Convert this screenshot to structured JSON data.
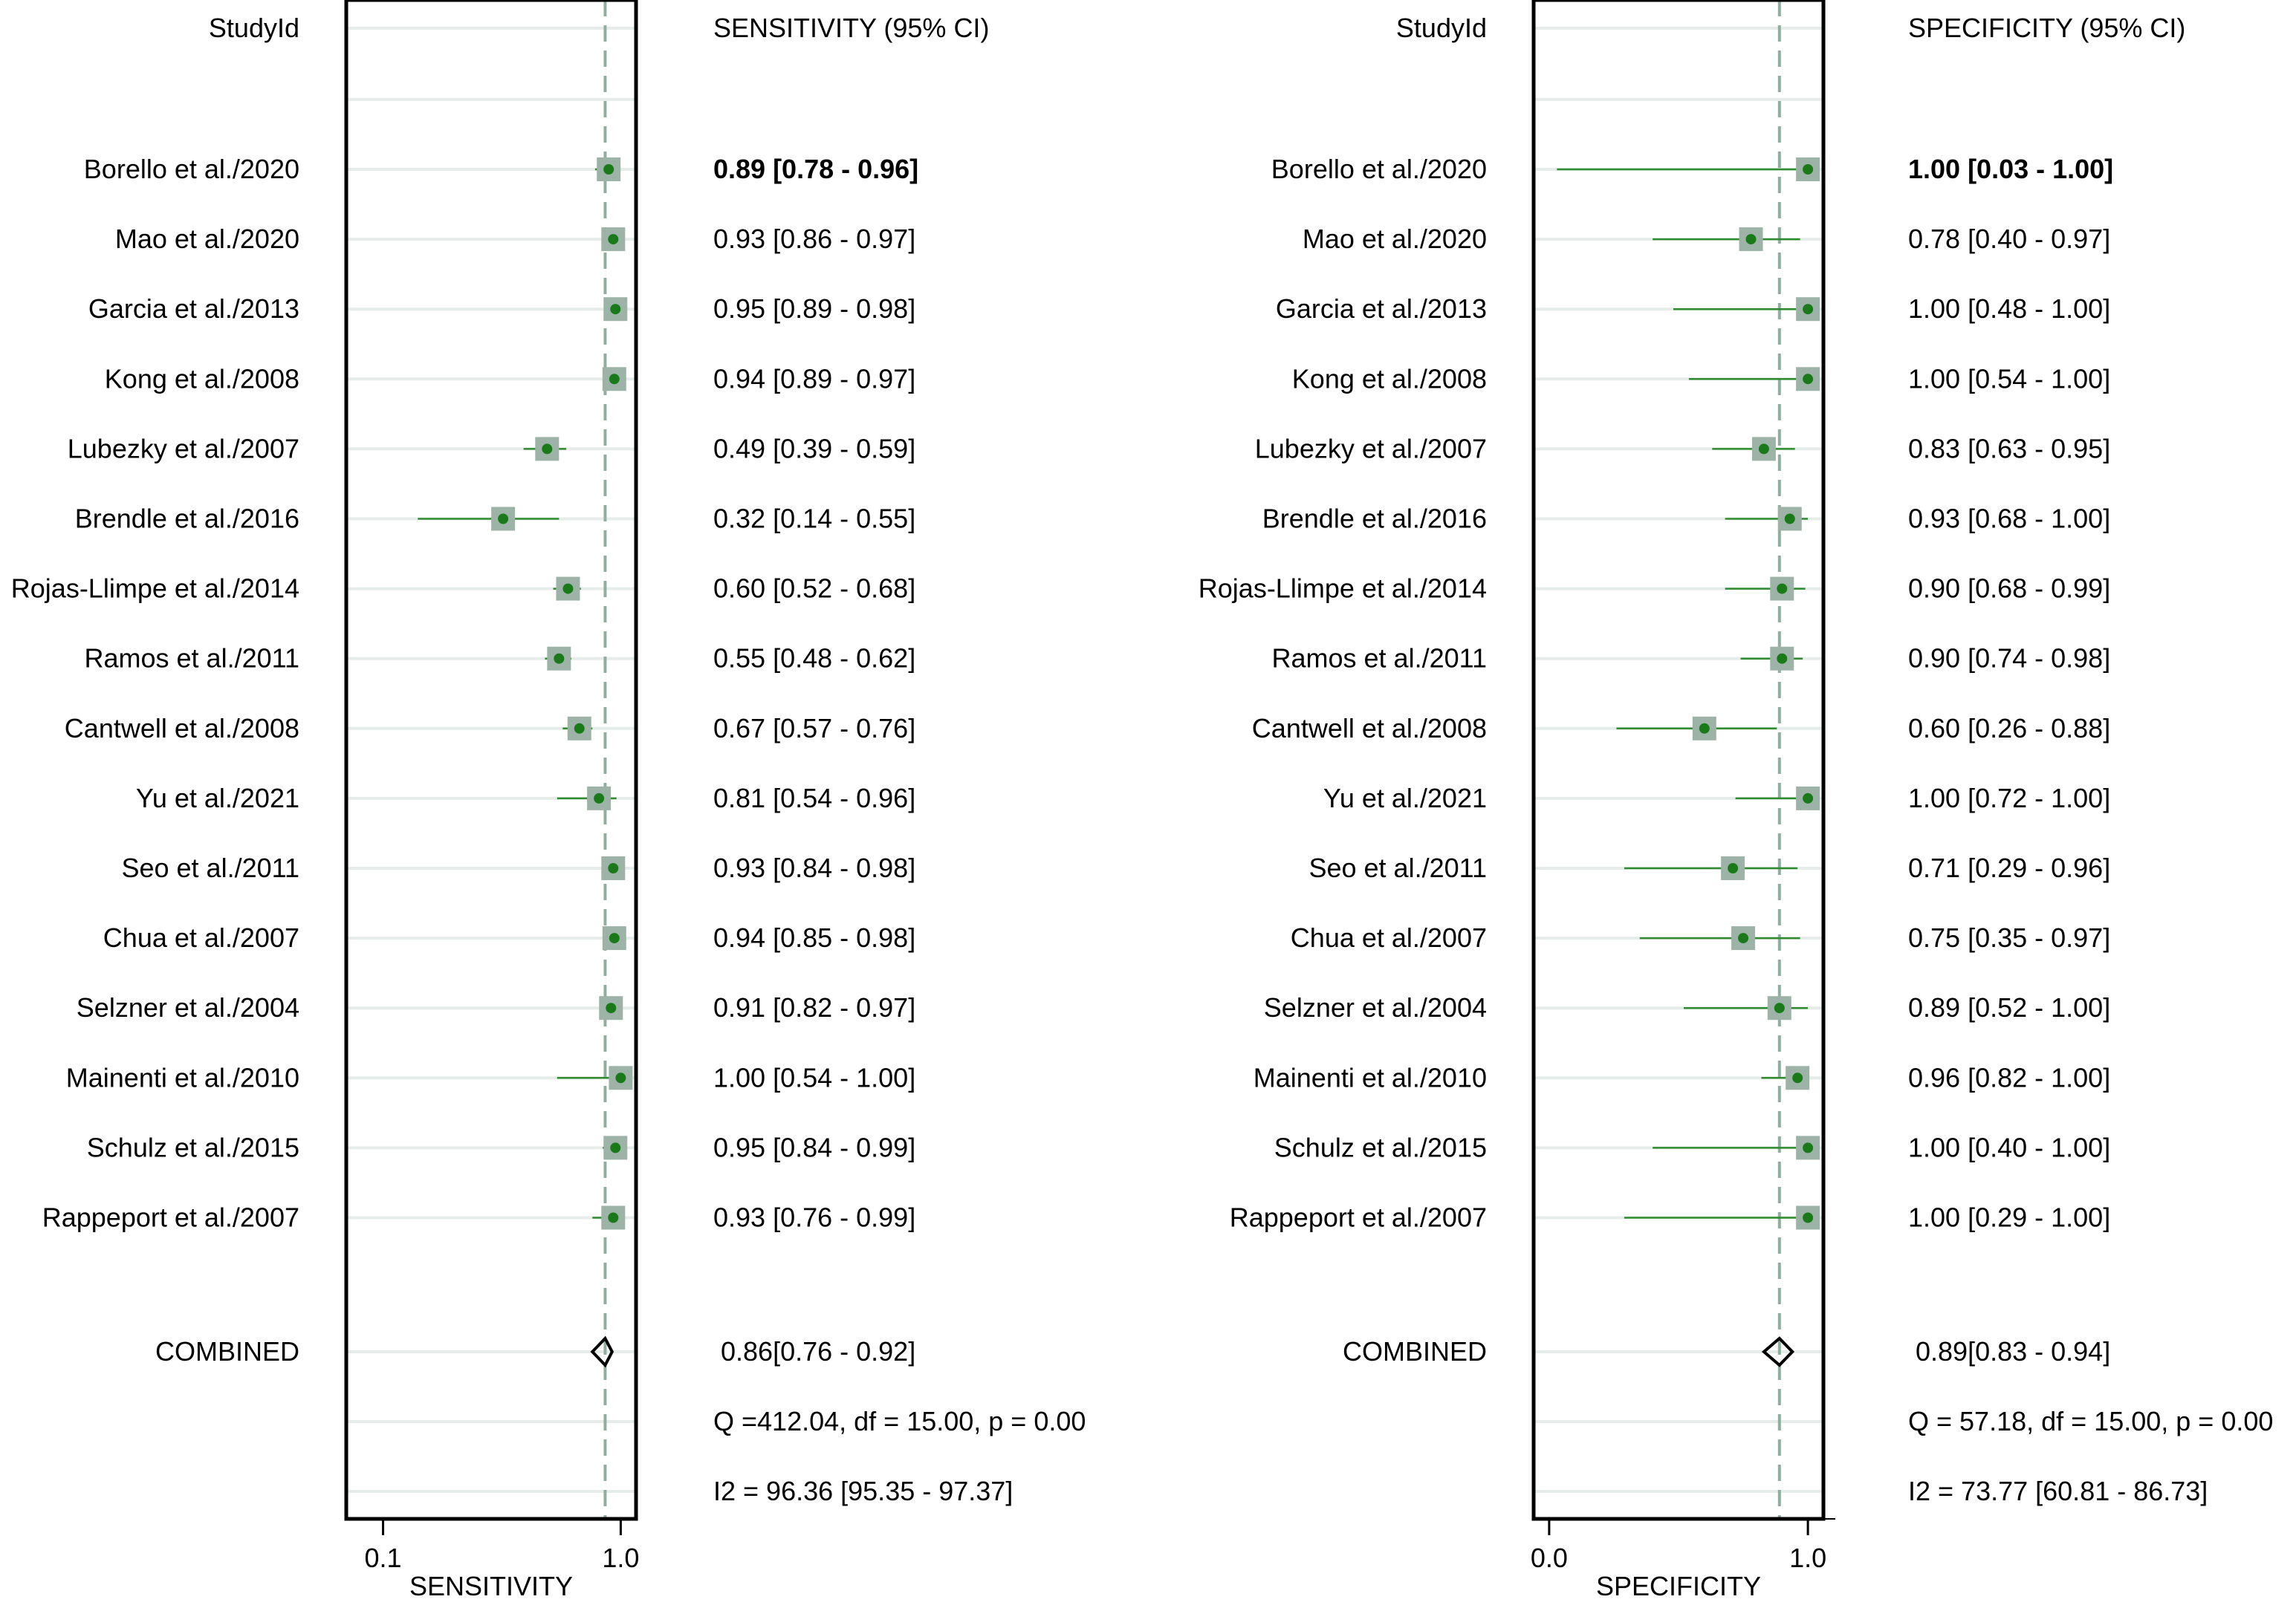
{
  "chart_data": [
    {
      "type": "forest",
      "scale": "log",
      "header_label": "StudyId",
      "metric_header": "SENSITIVITY (95% CI)",
      "xlabel": "SENSITIVITY",
      "xlim": [
        0.07,
        1.16
      ],
      "x_ticks": [
        0.1,
        1.0
      ],
      "x_tick_labels": [
        "0.1",
        "1.0"
      ],
      "reference_line": 0.86,
      "colors": {
        "ci_line": "#2e8b2e",
        "point": "#1a7a1a",
        "marker_box": "#9db3a8",
        "ref_line": "#8fae9f",
        "grid": "#e6ece9",
        "frame": "#000000"
      },
      "studies": [
        {
          "name": "Borello et al./2020",
          "est": 0.89,
          "lo": 0.78,
          "hi": 0.96,
          "label": "0.89 [0.78 - 0.96]",
          "bold": true
        },
        {
          "name": "Mao et al./2020",
          "est": 0.93,
          "lo": 0.86,
          "hi": 0.97,
          "label": "0.93 [0.86 - 0.97]"
        },
        {
          "name": "Garcia et al./2013",
          "est": 0.95,
          "lo": 0.89,
          "hi": 0.98,
          "label": "0.95 [0.89 - 0.98]"
        },
        {
          "name": "Kong et al./2008",
          "est": 0.94,
          "lo": 0.89,
          "hi": 0.97,
          "label": "0.94 [0.89 - 0.97]"
        },
        {
          "name": "Lubezky et al./2007",
          "est": 0.49,
          "lo": 0.39,
          "hi": 0.59,
          "label": "0.49 [0.39 - 0.59]"
        },
        {
          "name": "Brendle et al./2016",
          "est": 0.32,
          "lo": 0.14,
          "hi": 0.55,
          "label": "0.32 [0.14 - 0.55]"
        },
        {
          "name": "Rojas-Llimpe et al./2014",
          "est": 0.6,
          "lo": 0.52,
          "hi": 0.68,
          "label": "0.60 [0.52 - 0.68]"
        },
        {
          "name": "Ramos et al./2011",
          "est": 0.55,
          "lo": 0.48,
          "hi": 0.62,
          "label": "0.55 [0.48 - 0.62]"
        },
        {
          "name": "Cantwell et al./2008",
          "est": 0.67,
          "lo": 0.57,
          "hi": 0.76,
          "label": "0.67 [0.57 - 0.76]"
        },
        {
          "name": "Yu et al./2021",
          "est": 0.81,
          "lo": 0.54,
          "hi": 0.96,
          "label": "0.81 [0.54 - 0.96]"
        },
        {
          "name": "Seo et al./2011",
          "est": 0.93,
          "lo": 0.84,
          "hi": 0.98,
          "label": "0.93 [0.84 - 0.98]"
        },
        {
          "name": "Chua et al./2007",
          "est": 0.94,
          "lo": 0.85,
          "hi": 0.98,
          "label": "0.94 [0.85 - 0.98]"
        },
        {
          "name": "Selzner et al./2004",
          "est": 0.91,
          "lo": 0.82,
          "hi": 0.97,
          "label": "0.91 [0.82 - 0.97]"
        },
        {
          "name": "Mainenti et al./2010",
          "est": 1.0,
          "lo": 0.54,
          "hi": 1.0,
          "label": "1.00 [0.54 - 1.00]"
        },
        {
          "name": "Schulz et al./2015",
          "est": 0.95,
          "lo": 0.84,
          "hi": 0.99,
          "label": "0.95 [0.84 - 0.99]"
        },
        {
          "name": "Rappeport et al./2007",
          "est": 0.93,
          "lo": 0.76,
          "hi": 0.99,
          "label": "0.93 [0.76 - 0.99]"
        }
      ],
      "combined": {
        "name": "COMBINED",
        "est": 0.86,
        "lo": 0.76,
        "hi": 0.92,
        "label": "0.86[0.76 - 0.92]"
      },
      "heterogeneity": {
        "q_text": "Q =412.04, df = 15.00, p =  0.00",
        "i2_text": "I2 = 96.36 [95.35 - 97.37]"
      }
    },
    {
      "type": "forest",
      "scale": "linear",
      "header_label": "StudyId",
      "metric_header": "SPECIFICITY (95% CI)",
      "xlabel": "SPECIFICITY",
      "xlim": [
        -0.06,
        1.06
      ],
      "x_ticks": [
        0.0,
        1.0
      ],
      "x_tick_labels": [
        "0.0",
        "1.0"
      ],
      "reference_line": 0.89,
      "colors": {
        "ci_line": "#2e8b2e",
        "point": "#1a7a1a",
        "marker_box": "#9db3a8",
        "ref_line": "#8fae9f",
        "grid": "#e6ece9",
        "frame": "#000000"
      },
      "studies": [
        {
          "name": "Borello et al./2020",
          "est": 1.0,
          "lo": 0.03,
          "hi": 1.0,
          "label": "1.00 [0.03 - 1.00]",
          "bold": true
        },
        {
          "name": "Mao et al./2020",
          "est": 0.78,
          "lo": 0.4,
          "hi": 0.97,
          "label": "0.78 [0.40 - 0.97]"
        },
        {
          "name": "Garcia et al./2013",
          "est": 1.0,
          "lo": 0.48,
          "hi": 1.0,
          "label": "1.00 [0.48 - 1.00]"
        },
        {
          "name": "Kong et al./2008",
          "est": 1.0,
          "lo": 0.54,
          "hi": 1.0,
          "label": "1.00 [0.54 - 1.00]"
        },
        {
          "name": "Lubezky et al./2007",
          "est": 0.83,
          "lo": 0.63,
          "hi": 0.95,
          "label": "0.83 [0.63 - 0.95]"
        },
        {
          "name": "Brendle et al./2016",
          "est": 0.93,
          "lo": 0.68,
          "hi": 1.0,
          "label": "0.93 [0.68 - 1.00]"
        },
        {
          "name": "Rojas-Llimpe et al./2014",
          "est": 0.9,
          "lo": 0.68,
          "hi": 0.99,
          "label": "0.90 [0.68 - 0.99]"
        },
        {
          "name": "Ramos et al./2011",
          "est": 0.9,
          "lo": 0.74,
          "hi": 0.98,
          "label": "0.90 [0.74 - 0.98]"
        },
        {
          "name": "Cantwell et al./2008",
          "est": 0.6,
          "lo": 0.26,
          "hi": 0.88,
          "label": "0.60 [0.26 - 0.88]"
        },
        {
          "name": "Yu et al./2021",
          "est": 1.0,
          "lo": 0.72,
          "hi": 1.0,
          "label": "1.00 [0.72 - 1.00]"
        },
        {
          "name": "Seo et al./2011",
          "est": 0.71,
          "lo": 0.29,
          "hi": 0.96,
          "label": "0.71 [0.29 - 0.96]"
        },
        {
          "name": "Chua et al./2007",
          "est": 0.75,
          "lo": 0.35,
          "hi": 0.97,
          "label": "0.75 [0.35 - 0.97]"
        },
        {
          "name": "Selzner et al./2004",
          "est": 0.89,
          "lo": 0.52,
          "hi": 1.0,
          "label": "0.89 [0.52 - 1.00]"
        },
        {
          "name": "Mainenti et al./2010",
          "est": 0.96,
          "lo": 0.82,
          "hi": 1.0,
          "label": "0.96 [0.82 - 1.00]"
        },
        {
          "name": "Schulz et al./2015",
          "est": 1.0,
          "lo": 0.4,
          "hi": 1.0,
          "label": "1.00 [0.40 - 1.00]"
        },
        {
          "name": "Rappeport et al./2007",
          "est": 1.0,
          "lo": 0.29,
          "hi": 1.0,
          "label": "1.00 [0.29 - 1.00]"
        }
      ],
      "combined": {
        "name": "COMBINED",
        "est": 0.89,
        "lo": 0.83,
        "hi": 0.94,
        "label": "0.89[0.83 - 0.94]"
      },
      "heterogeneity": {
        "q_text": "Q = 57.18, df = 15.00, p =  0.00",
        "i2_text": "I2 = 73.77 [60.81 - 86.73]"
      }
    }
  ]
}
